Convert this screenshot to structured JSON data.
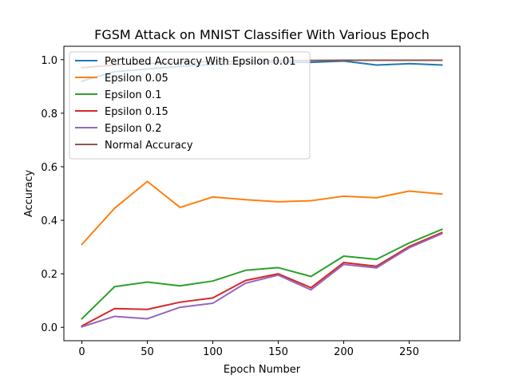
{
  "chart_data": {
    "type": "line",
    "title": "FGSM Attack on MNIST Classifier With Various Epoch",
    "xlabel": "Epoch Number",
    "ylabel": "Accuracy",
    "xlim": [
      -13.75,
      288.75
    ],
    "ylim": [
      -0.05,
      1.05
    ],
    "xticks": [
      0,
      50,
      100,
      150,
      200,
      250
    ],
    "yticks": [
      0.0,
      0.2,
      0.4,
      0.6,
      0.8,
      1.0
    ],
    "ytick_labels": [
      "0.0",
      "0.2",
      "0.4",
      "0.6",
      "0.8",
      "1.0"
    ],
    "grid": false,
    "legend_position": "upper-left",
    "x": [
      0,
      25,
      50,
      75,
      100,
      125,
      150,
      175,
      200,
      225,
      250,
      275
    ],
    "series": [
      {
        "name": "Pertubed Accuracy With Epsilon 0.01",
        "color": "#1f77b4",
        "values": [
          0.92,
          0.955,
          0.965,
          0.975,
          0.982,
          0.985,
          0.99,
          0.99,
          0.995,
          0.98,
          0.985,
          0.98
        ]
      },
      {
        "name": "Epsilon 0.05",
        "color": "#ff7f0e",
        "values": [
          0.31,
          0.445,
          0.545,
          0.448,
          0.487,
          0.477,
          0.469,
          0.473,
          0.49,
          0.484,
          0.509,
          0.498
        ]
      },
      {
        "name": "Epsilon 0.1",
        "color": "#2ca02c",
        "values": [
          0.032,
          0.152,
          0.169,
          0.155,
          0.173,
          0.213,
          0.223,
          0.19,
          0.266,
          0.254,
          0.315,
          0.366
        ]
      },
      {
        "name": "Epsilon 0.15",
        "color": "#d62728",
        "values": [
          0.005,
          0.07,
          0.067,
          0.094,
          0.11,
          0.175,
          0.2,
          0.148,
          0.242,
          0.228,
          0.302,
          0.354
        ]
      },
      {
        "name": "Epsilon 0.2",
        "color": "#9467bd",
        "values": [
          0.002,
          0.041,
          0.032,
          0.075,
          0.09,
          0.165,
          0.195,
          0.14,
          0.235,
          0.222,
          0.297,
          0.35
        ]
      },
      {
        "name": "Normal Accuracy",
        "color": "#8c564b",
        "values": [
          0.97,
          0.98,
          0.985,
          0.99,
          0.993,
          0.995,
          0.997,
          0.997,
          0.998,
          0.998,
          0.998,
          0.998
        ]
      }
    ]
  }
}
